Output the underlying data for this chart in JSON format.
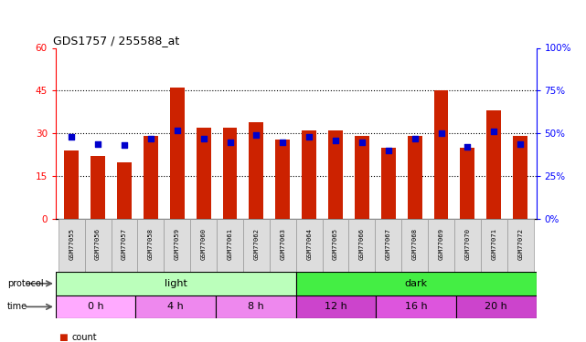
{
  "title": "GDS1757 / 255588_at",
  "samples": [
    "GSM77055",
    "GSM77056",
    "GSM77057",
    "GSM77058",
    "GSM77059",
    "GSM77060",
    "GSM77061",
    "GSM77062",
    "GSM77063",
    "GSM77064",
    "GSM77065",
    "GSM77066",
    "GSM77067",
    "GSM77068",
    "GSM77069",
    "GSM77070",
    "GSM77071",
    "GSM77072"
  ],
  "count_values": [
    24,
    22,
    20,
    29,
    46,
    32,
    32,
    34,
    28,
    31,
    31,
    29,
    25,
    29,
    45,
    25,
    38,
    29
  ],
  "percentile_values": [
    48,
    44,
    43,
    47,
    52,
    47,
    45,
    49,
    45,
    48,
    46,
    45,
    40,
    47,
    50,
    42,
    51,
    44
  ],
  "ylim_left": [
    0,
    60
  ],
  "ylim_right": [
    0,
    100
  ],
  "yticks_left": [
    0,
    15,
    30,
    45,
    60
  ],
  "yticks_right": [
    0,
    25,
    50,
    75,
    100
  ],
  "bar_color": "#cc2200",
  "scatter_color": "#0000cc",
  "protocol_groups": [
    {
      "label": "light",
      "start": 0,
      "end": 9,
      "color": "#bbffbb"
    },
    {
      "label": "dark",
      "start": 9,
      "end": 18,
      "color": "#44ee44"
    }
  ],
  "time_groups": [
    {
      "label": "0 h",
      "start": 0,
      "end": 3,
      "color": "#ffaaff"
    },
    {
      "label": "4 h",
      "start": 3,
      "end": 6,
      "color": "#ee88ee"
    },
    {
      "label": "8 h",
      "start": 6,
      "end": 9,
      "color": "#ee88ee"
    },
    {
      "label": "12 h",
      "start": 9,
      "end": 12,
      "color": "#cc44cc"
    },
    {
      "label": "16 h",
      "start": 12,
      "end": 15,
      "color": "#dd55dd"
    },
    {
      "label": "20 h",
      "start": 15,
      "end": 18,
      "color": "#cc44cc"
    }
  ]
}
